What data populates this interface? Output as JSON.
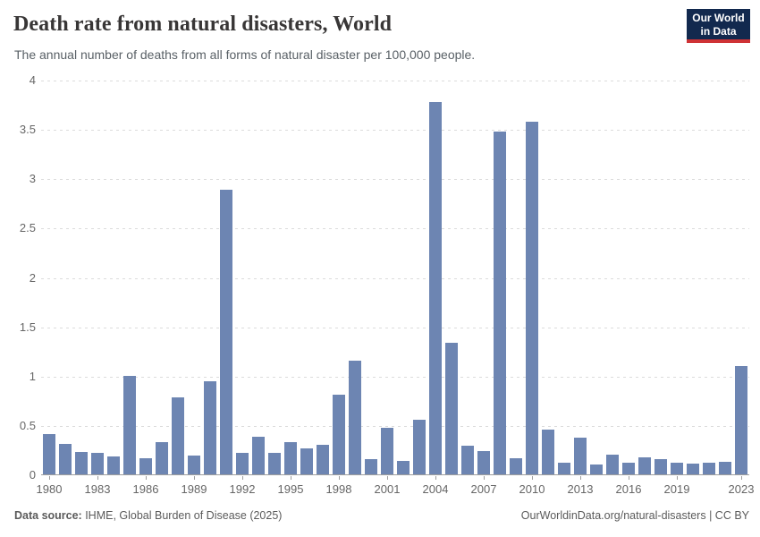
{
  "header": {
    "title": "Death rate from natural disasters, World",
    "subtitle": "The annual number of deaths from all forms of natural disaster per 100,000 people.",
    "logo": {
      "line1": "Our World",
      "line2": "in Data",
      "bg_color": "#12294e",
      "accent_color": "#cf3235"
    }
  },
  "chart_data": {
    "type": "bar",
    "title": "Death rate from natural disasters, World",
    "subtitle": "The annual number of deaths from all forms of natural disaster per 100,000 people.",
    "xlabel": "",
    "ylabel": "",
    "ylim": [
      0,
      4
    ],
    "grid": "horizontal-dashed",
    "legend": "none",
    "bar_color": "#6d85b2",
    "axis_text_color": "#666666",
    "y_ticks": [
      0,
      0.5,
      1,
      1.5,
      2,
      2.5,
      3,
      3.5,
      4
    ],
    "y_tick_labels": [
      "0",
      "0.5",
      "1",
      "1.5",
      "2",
      "2.5",
      "3",
      "3.5",
      "4"
    ],
    "x_tick_labels": [
      "1980",
      "1983",
      "1986",
      "1989",
      "1992",
      "1995",
      "1998",
      "2001",
      "2004",
      "2007",
      "2010",
      "2013",
      "2016",
      "2019",
      "2023"
    ],
    "categories": [
      1980,
      1981,
      1982,
      1983,
      1984,
      1985,
      1986,
      1987,
      1988,
      1989,
      1990,
      1991,
      1992,
      1993,
      1994,
      1995,
      1996,
      1997,
      1998,
      1999,
      2000,
      2001,
      2002,
      2003,
      2004,
      2005,
      2006,
      2007,
      2008,
      2009,
      2010,
      2011,
      2012,
      2013,
      2014,
      2015,
      2016,
      2017,
      2018,
      2019,
      2020,
      2021,
      2022,
      2023
    ],
    "values": [
      0.41,
      0.31,
      0.23,
      0.22,
      0.18,
      1.0,
      0.16,
      0.33,
      0.78,
      0.19,
      0.94,
      2.88,
      0.22,
      0.38,
      0.22,
      0.33,
      0.26,
      0.3,
      0.81,
      1.15,
      0.15,
      0.47,
      0.14,
      0.55,
      3.77,
      1.33,
      0.29,
      0.24,
      3.47,
      0.16,
      3.57,
      0.45,
      0.12,
      0.37,
      0.1,
      0.2,
      0.12,
      0.17,
      0.15,
      0.12,
      0.11,
      0.12,
      0.13,
      1.1
    ]
  },
  "footer": {
    "source_label": "Data source:",
    "source_text": " IHME, Global Burden of Disease (2025)",
    "credit": "OurWorldinData.org/natural-disasters | CC BY"
  }
}
